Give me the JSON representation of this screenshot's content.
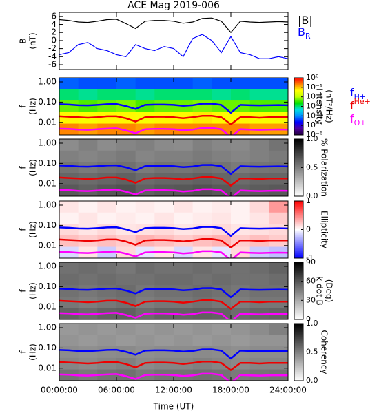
{
  "chart_data": [
    {
      "type": "line",
      "title": "ACE Mag 2019-006",
      "ylabel": [
        "B",
        "(nT)"
      ],
      "ylim": [
        -7.2,
        7.0
      ],
      "yticks": [
        6,
        4,
        2,
        0,
        -2,
        -4,
        -6
      ],
      "x": [
        0,
        1,
        2,
        3,
        4,
        5,
        6,
        7,
        8,
        9,
        10,
        11,
        12,
        13,
        14,
        15,
        16,
        17,
        18,
        19,
        20,
        21,
        22,
        23,
        24
      ],
      "series": [
        {
          "name": "|B|",
          "color": "#000000",
          "values": [
            5.2,
            5.0,
            4.6,
            4.5,
            4.8,
            5.2,
            5.3,
            4.2,
            3.0,
            4.8,
            5.0,
            5.0,
            4.8,
            4.3,
            4.6,
            5.5,
            5.6,
            4.8,
            2.0,
            4.8,
            4.6,
            4.5,
            4.6,
            4.7,
            4.6
          ]
        },
        {
          "name": "B",
          "name_sub": "R",
          "color": "#0000ff",
          "values": [
            -3.5,
            -3.0,
            -1.0,
            -0.5,
            -2.0,
            -2.5,
            -3.5,
            -4.0,
            -1.0,
            -2.0,
            -2.5,
            -1.5,
            -2.0,
            -4.0,
            0.5,
            1.5,
            0.0,
            -3.0,
            1.0,
            -3.0,
            -3.5,
            -4.5,
            -4.5,
            -4.0,
            -4.5
          ]
        }
      ]
    },
    {
      "type": "heatmap",
      "ylabel": [
        "f",
        "(Hz)"
      ],
      "ylog": true,
      "ylim": [
        0.0024,
        1.6
      ],
      "yticks": [
        {
          "value": 1,
          "label": "1.00"
        },
        {
          "value": 0.1,
          "label": "0.10"
        },
        {
          "value": 0.01,
          "label": "0.01"
        }
      ],
      "clabel": [
        "Intensity",
        "(nT²/Hz)"
      ],
      "clog": true,
      "clim": [
        1e-06,
        1
      ],
      "cticks": [
        {
          "value": 1,
          "label": "10⁰"
        },
        {
          "value": 0.1,
          "label": "10⁻¹"
        },
        {
          "value": 0.01,
          "label": "10⁻²"
        },
        {
          "value": 0.001,
          "label": "10⁻³"
        },
        {
          "value": 0.0001,
          "label": "10⁻⁴"
        },
        {
          "value": 1e-05,
          "label": "10⁻⁵"
        },
        {
          "value": 1e-06,
          "label": "10⁻⁶"
        }
      ],
      "colormap": [
        "#20003a",
        "#5000a0",
        "#0000ff",
        "#0090ff",
        "#00e0e0",
        "#00e000",
        "#c0ff00",
        "#ffff00",
        "#ff8000",
        "#ff0000"
      ],
      "time_bins": [
        0,
        2,
        4,
        6,
        8,
        10,
        12,
        14,
        16,
        18,
        20,
        22,
        24
      ],
      "freq_bins": [
        1.6,
        0.43,
        0.12,
        0.032,
        0.0087,
        0.0024
      ],
      "z": [
        [
          6e-05,
          5e-05,
          5e-05,
          6e-05,
          5e-05,
          5e-05,
          5e-05,
          6e-05,
          5e-05,
          5e-05,
          5e-05,
          5e-05
        ],
        [
          0.001,
          0.0008,
          0.001,
          0.001,
          0.0008,
          0.001,
          0.001,
          0.001,
          0.0008,
          0.001,
          0.0008,
          0.0008
        ],
        [
          0.005,
          0.004,
          0.005,
          0.006,
          0.004,
          0.005,
          0.005,
          0.006,
          0.005,
          0.005,
          0.004,
          0.004
        ],
        [
          0.05,
          0.04,
          0.05,
          0.05,
          0.04,
          0.05,
          0.05,
          0.06,
          0.05,
          0.05,
          0.04,
          0.04
        ],
        [
          0.2,
          0.15,
          0.2,
          0.2,
          0.15,
          0.2,
          0.2,
          0.2,
          0.2,
          0.2,
          0.15,
          0.15
        ]
      ],
      "x": [
        0,
        1,
        2,
        3,
        4,
        5,
        6,
        7,
        8,
        9,
        10,
        11,
        12,
        13,
        14,
        15,
        16,
        17,
        18,
        19,
        20,
        21,
        22,
        23,
        24
      ],
      "series": [
        {
          "name": "f",
          "name_sub": "H+",
          "color": "#0000ff",
          "values": [
            0.079,
            0.076,
            0.07,
            0.069,
            0.073,
            0.079,
            0.081,
            0.064,
            0.046,
            0.073,
            0.076,
            0.076,
            0.073,
            0.066,
            0.07,
            0.084,
            0.085,
            0.073,
            0.03,
            0.073,
            0.07,
            0.069,
            0.07,
            0.072,
            0.07
          ]
        },
        {
          "name": "f",
          "name_sup": "He+",
          "color": "#ee0000",
          "values": [
            0.02,
            0.019,
            0.018,
            0.017,
            0.018,
            0.02,
            0.02,
            0.016,
            0.011,
            0.018,
            0.019,
            0.019,
            0.018,
            0.016,
            0.018,
            0.021,
            0.021,
            0.018,
            0.008,
            0.018,
            0.018,
            0.017,
            0.018,
            0.018,
            0.018
          ]
        },
        {
          "name": "f",
          "name_sub": "O+",
          "color": "#ff00ff",
          "values": [
            0.0049,
            0.0048,
            0.0044,
            0.0043,
            0.0046,
            0.0049,
            0.0051,
            0.004,
            0.0029,
            0.0046,
            0.0048,
            0.0048,
            0.0046,
            0.0041,
            0.0044,
            0.0053,
            0.0053,
            0.0046,
            0.0019,
            0.0046,
            0.0044,
            0.0043,
            0.0044,
            0.0045,
            0.0044
          ]
        }
      ]
    },
    {
      "type": "heatmap",
      "ylabel": [
        "f",
        "(Hz)"
      ],
      "ylog": true,
      "ylim": [
        0.0024,
        1.6
      ],
      "yticks": [
        {
          "value": 1,
          "label": "1.00"
        },
        {
          "value": 0.1,
          "label": "0.10"
        },
        {
          "value": 0.01,
          "label": "0.01"
        }
      ],
      "clabel": [
        "% Polarization"
      ],
      "clim": [
        0,
        1
      ],
      "cticks": [
        {
          "value": 1,
          "label": "1.0"
        },
        0.5,
        {
          "value": 0,
          "label": "0.0"
        }
      ],
      "colormap": [
        "#ffffff",
        "#000000"
      ],
      "time_bins": [
        0,
        2,
        4,
        6,
        8,
        10,
        12,
        14,
        16,
        18,
        20,
        22,
        24
      ],
      "freq_bins": [
        1.6,
        0.43,
        0.12,
        0.032,
        0.0087,
        0.0024
      ],
      "z": [
        [
          0.45,
          0.5,
          0.45,
          0.48,
          0.5,
          0.46,
          0.45,
          0.5,
          0.47,
          0.46,
          0.5,
          0.55
        ],
        [
          0.5,
          0.48,
          0.5,
          0.52,
          0.48,
          0.5,
          0.5,
          0.52,
          0.5,
          0.48,
          0.5,
          0.52
        ],
        [
          0.55,
          0.52,
          0.55,
          0.56,
          0.52,
          0.55,
          0.54,
          0.56,
          0.55,
          0.52,
          0.54,
          0.55
        ],
        [
          0.6,
          0.58,
          0.6,
          0.62,
          0.58,
          0.6,
          0.6,
          0.62,
          0.6,
          0.58,
          0.6,
          0.6
        ],
        [
          0.65,
          0.62,
          0.66,
          0.68,
          0.62,
          0.65,
          0.66,
          0.68,
          0.65,
          0.62,
          0.64,
          0.65
        ]
      ]
    },
    {
      "type": "heatmap",
      "ylabel": [
        "f",
        "(Hz)"
      ],
      "ylog": true,
      "ylim": [
        0.0024,
        1.6
      ],
      "yticks": [
        {
          "value": 1,
          "label": "1.00"
        },
        {
          "value": 0.1,
          "label": "0.10"
        },
        {
          "value": 0.01,
          "label": "0.01"
        }
      ],
      "clabel": [
        "Ellipticity"
      ],
      "clim": [
        -1,
        1
      ],
      "cticks": [
        1,
        0,
        -1
      ],
      "colormap": [
        "#0000ff",
        "#ffffff",
        "#ff0000"
      ],
      "time_bins": [
        0,
        2,
        4,
        6,
        8,
        10,
        12,
        14,
        16,
        18,
        20,
        22,
        24
      ],
      "freq_bins": [
        1.6,
        0.43,
        0.12,
        0.032,
        0.0087,
        0.0024
      ],
      "z": [
        [
          0.1,
          0.05,
          0.1,
          0.05,
          0.08,
          0.05,
          0.1,
          0.05,
          0.08,
          0.05,
          0.15,
          0.4
        ],
        [
          0.05,
          0.1,
          0.05,
          0.08,
          0.05,
          0.1,
          0.05,
          0.08,
          0.1,
          0.05,
          0.1,
          0.2
        ],
        [
          0.15,
          0.1,
          0.15,
          0.1,
          0.12,
          0.15,
          0.1,
          0.12,
          0.15,
          0.1,
          0.12,
          0.15
        ],
        [
          0.25,
          0.2,
          0.25,
          0.2,
          0.3,
          0.25,
          0.2,
          0.25,
          0.3,
          0.2,
          0.25,
          0.2
        ],
        [
          -0.15,
          0.1,
          -0.2,
          0.15,
          -0.1,
          0.1,
          -0.15,
          0.1,
          -0.1,
          0.15,
          -0.2,
          -0.25
        ]
      ]
    },
    {
      "type": "heatmap",
      "ylabel": [
        "f",
        "(Hz)"
      ],
      "ylog": true,
      "ylim": [
        0.0024,
        1.6
      ],
      "yticks": [
        {
          "value": 1,
          "label": "1.00"
        },
        {
          "value": 0.1,
          "label": "0.10"
        },
        {
          "value": 0.01,
          "label": "0.01"
        }
      ],
      "clabel": [
        "k dot B",
        "(Deg)"
      ],
      "clim": [
        0,
        90
      ],
      "cticks": [
        90,
        60,
        30,
        0
      ],
      "colormap": [
        "#ffffff",
        "#000000"
      ],
      "time_bins": [
        0,
        2,
        4,
        6,
        8,
        10,
        12,
        14,
        16,
        18,
        20,
        22,
        24
      ],
      "freq_bins": [
        1.6,
        0.43,
        0.12,
        0.032,
        0.0087,
        0.0024
      ],
      "z": [
        [
          50,
          52,
          50,
          48,
          52,
          50,
          50,
          52,
          50,
          50,
          52,
          55
        ],
        [
          52,
          50,
          52,
          50,
          50,
          52,
          52,
          50,
          52,
          50,
          50,
          52
        ],
        [
          50,
          48,
          50,
          52,
          48,
          50,
          50,
          52,
          50,
          48,
          50,
          50
        ],
        [
          48,
          46,
          48,
          50,
          46,
          48,
          48,
          50,
          48,
          46,
          48,
          48
        ],
        [
          55,
          52,
          55,
          56,
          52,
          55,
          55,
          56,
          55,
          52,
          54,
          55
        ]
      ]
    },
    {
      "type": "heatmap",
      "ylabel": [
        "f",
        "(Hz)"
      ],
      "ylog": true,
      "ylim": [
        0.0024,
        1.6
      ],
      "yticks": [
        {
          "value": 1,
          "label": "1.00"
        },
        {
          "value": 0.1,
          "label": "0.10"
        },
        {
          "value": 0.01,
          "label": "0.01"
        }
      ],
      "clabel": [
        "Coherency"
      ],
      "clim": [
        0,
        1
      ],
      "cticks": [
        {
          "value": 1,
          "label": "1.0"
        },
        0.5,
        {
          "value": 0,
          "label": "0.0"
        }
      ],
      "colormap": [
        "#ffffff",
        "#000000"
      ],
      "time_bins": [
        0,
        2,
        4,
        6,
        8,
        10,
        12,
        14,
        16,
        18,
        20,
        22,
        24
      ],
      "freq_bins": [
        1.6,
        0.43,
        0.12,
        0.032,
        0.0087,
        0.0024
      ],
      "z": [
        [
          0.4,
          0.42,
          0.4,
          0.42,
          0.4,
          0.42,
          0.4,
          0.42,
          0.4,
          0.42,
          0.45,
          0.5
        ],
        [
          0.42,
          0.4,
          0.42,
          0.4,
          0.42,
          0.4,
          0.42,
          0.4,
          0.42,
          0.4,
          0.42,
          0.42
        ],
        [
          0.45,
          0.44,
          0.45,
          0.46,
          0.44,
          0.45,
          0.45,
          0.46,
          0.45,
          0.44,
          0.45,
          0.45
        ],
        [
          0.48,
          0.46,
          0.48,
          0.5,
          0.46,
          0.48,
          0.48,
          0.5,
          0.48,
          0.46,
          0.48,
          0.48
        ],
        [
          0.55,
          0.52,
          0.55,
          0.56,
          0.52,
          0.55,
          0.55,
          0.56,
          0.55,
          0.52,
          0.54,
          0.55
        ]
      ],
      "xlim": [
        0,
        24
      ],
      "xlabel": "Time (UT)",
      "xticks": [
        {
          "value": 0,
          "label": "00:00:00"
        },
        {
          "value": 6,
          "label": "06:00:00"
        },
        {
          "value": 12,
          "label": "12:00:00"
        },
        {
          "value": 18,
          "label": "18:00:00"
        },
        {
          "value": 24,
          "label": "24:00:00"
        }
      ]
    }
  ]
}
